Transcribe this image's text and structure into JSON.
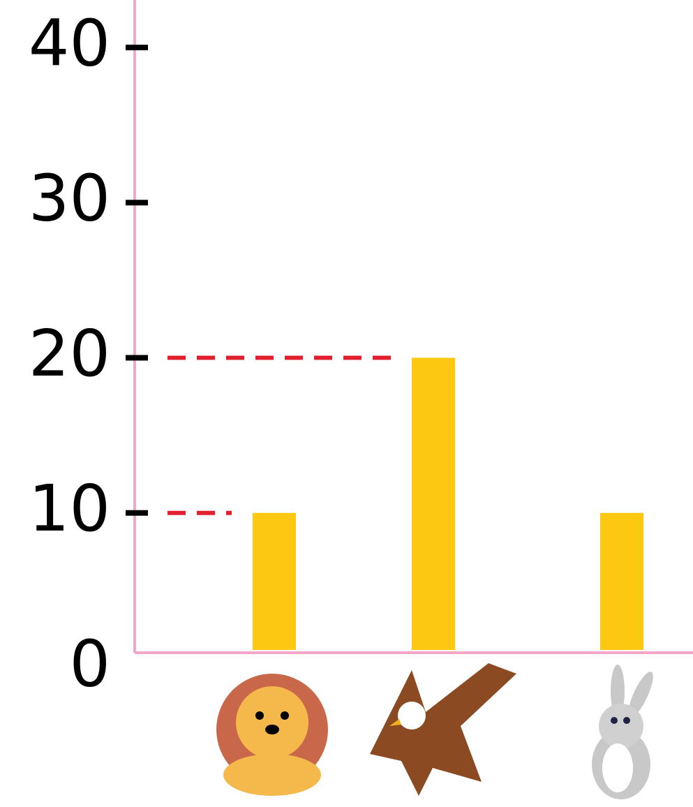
{
  "chart_data": {
    "type": "bar",
    "categories": [
      null,
      null,
      null
    ],
    "values": [
      10,
      20,
      10
    ],
    "color": "#fcc812",
    "axis_color": "#f4a6c8",
    "ylim": [
      0,
      40
    ],
    "yticks": [
      0,
      10,
      20,
      30,
      40
    ],
    "dashed_guides": [
      0,
      1
    ],
    "guide_color": "#e0202e"
  }
}
